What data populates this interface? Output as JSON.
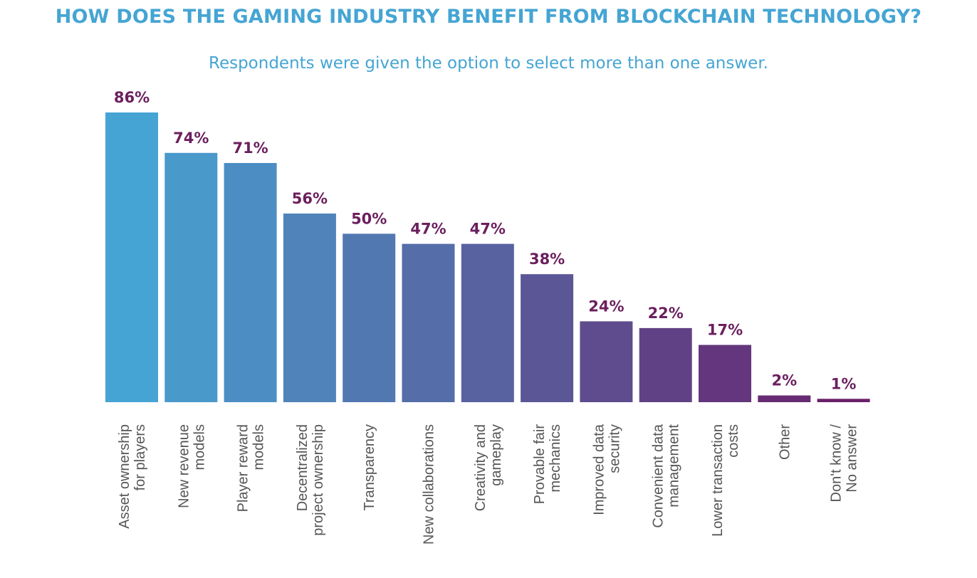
{
  "chart_data": {
    "type": "bar",
    "title": "HOW DOES THE GAMING INDUSTRY BENEFIT FROM BLOCKCHAIN TECHNOLOGY?",
    "subtitle": "Respondents were given the option to select more than one answer.",
    "categories": [
      [
        "Asset ownership",
        "for players"
      ],
      [
        "New revenue",
        "models"
      ],
      [
        "Player reward",
        "models"
      ],
      [
        "Decentralized",
        "project ownership"
      ],
      [
        "Transparency"
      ],
      [
        "New collaborations"
      ],
      [
        "Creativity and",
        "gameplay"
      ],
      [
        "Provable fair",
        "mechanics"
      ],
      [
        "Improved data",
        "security"
      ],
      [
        "Convenient data",
        "management"
      ],
      [
        "Lower transaction",
        "costs"
      ],
      [
        "Other"
      ],
      [
        "Don't know /",
        "No answer"
      ]
    ],
    "values": [
      86,
      74,
      71,
      56,
      50,
      47,
      47,
      38,
      24,
      22,
      17,
      2,
      1
    ],
    "value_labels": [
      "86%",
      "74%",
      "71%",
      "56%",
      "50%",
      "47%",
      "47%",
      "38%",
      "24%",
      "22%",
      "17%",
      "2%",
      "1%"
    ],
    "unit": "%",
    "ylim": [
      0,
      86
    ],
    "grid": false,
    "colors": {
      "start": "#46a4d4",
      "end": "#6a206b",
      "value_label": "#6b1f5e",
      "title": "#45a5d3"
    }
  }
}
